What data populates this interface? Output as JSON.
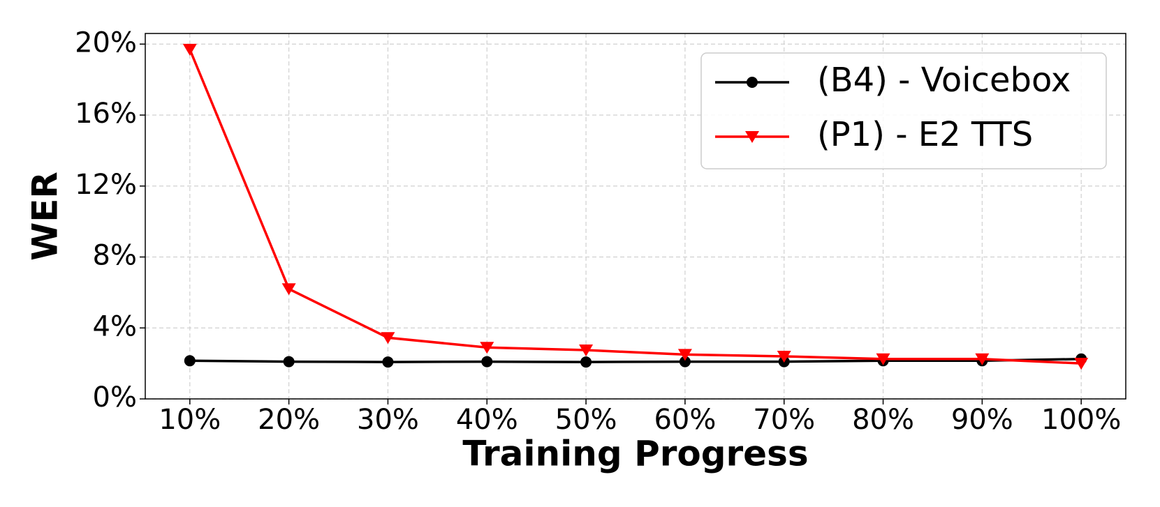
{
  "chart_data": {
    "type": "line",
    "xlabel": "Training Progress",
    "ylabel": "WER",
    "categories": [
      "10%",
      "20%",
      "30%",
      "40%",
      "50%",
      "60%",
      "70%",
      "80%",
      "90%",
      "100%"
    ],
    "series": [
      {
        "name": "(B4) - Voicebox",
        "color": "#000000",
        "marker": "circle",
        "values": [
          2.15,
          2.1,
          2.08,
          2.1,
          2.08,
          2.1,
          2.1,
          2.15,
          2.15,
          2.25
        ]
      },
      {
        "name": "(P1) - E2 TTS",
        "color": "#ff0000",
        "marker": "triangle-down",
        "values": [
          19.7,
          6.2,
          3.45,
          2.9,
          2.75,
          2.5,
          2.4,
          2.25,
          2.25,
          2.0
        ]
      }
    ],
    "ylim": [
      0,
      20.6
    ],
    "yticks": [
      {
        "value": 0,
        "label": "0%"
      },
      {
        "value": 4,
        "label": "4%"
      },
      {
        "value": 8,
        "label": "8%"
      },
      {
        "value": 12,
        "label": "12%"
      },
      {
        "value": 16,
        "label": "16%"
      },
      {
        "value": 20,
        "label": "20%"
      }
    ],
    "grid": true,
    "legend": "upper right"
  }
}
